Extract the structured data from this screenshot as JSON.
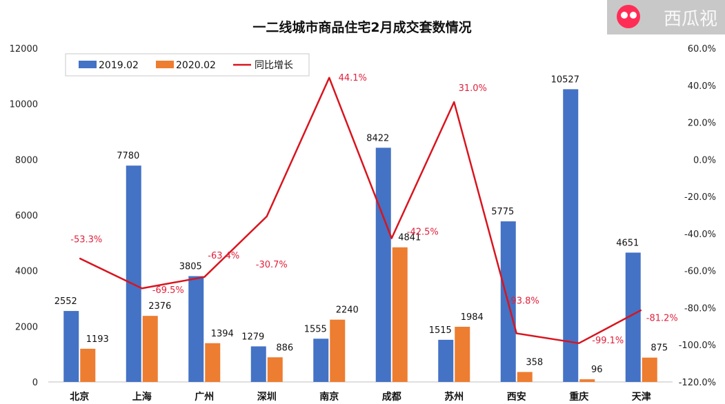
{
  "chart_data": {
    "type": "bar",
    "title": "一二线城市商品住宅2月成交套数情况",
    "categories": [
      "北京",
      "上海",
      "广州",
      "深圳",
      "南京",
      "成都",
      "苏州",
      "西安",
      "重庆",
      "天津"
    ],
    "series": [
      {
        "name": "2019.02",
        "type": "bar",
        "axis": "left",
        "color": "#4472c4",
        "values": [
          2552,
          7780,
          3805,
          1279,
          1555,
          8422,
          1515,
          5775,
          10527,
          4651
        ]
      },
      {
        "name": "2020.02",
        "type": "bar",
        "axis": "left",
        "color": "#ed7d31",
        "values": [
          1193,
          2376,
          1394,
          886,
          2240,
          4841,
          1984,
          358,
          96,
          875
        ]
      },
      {
        "name": "同比增长",
        "type": "line",
        "axis": "right",
        "color": "#d9141e",
        "values": [
          -53.3,
          -69.5,
          -63.4,
          -30.7,
          44.1,
          -42.5,
          31.0,
          -93.8,
          -99.1,
          -81.2
        ],
        "labels": [
          "-53.3%",
          "-69.5%",
          "-63.4%",
          "-30.7%",
          "44.1%",
          "-42.5%",
          "31.0%",
          "-93.8%",
          "-99.1%",
          "-81.2%"
        ]
      }
    ],
    "ylim_left": [
      0,
      12000
    ],
    "ylim_right": [
      -120,
      60
    ],
    "yticks_left": [
      "0",
      "2000",
      "4000",
      "6000",
      "8000",
      "10000",
      "12000"
    ],
    "yticks_right": [
      "-120.0%",
      "-100.0%",
      "-80.0%",
      "-60.0%",
      "-40.0%",
      "-20.0%",
      "0.0%",
      "20.0%",
      "40.0%",
      "60.0%"
    ],
    "legend_position": "top-left",
    "grid": false
  },
  "watermark": {
    "text": "西瓜视",
    "brand_color": "#ff2d55"
  }
}
